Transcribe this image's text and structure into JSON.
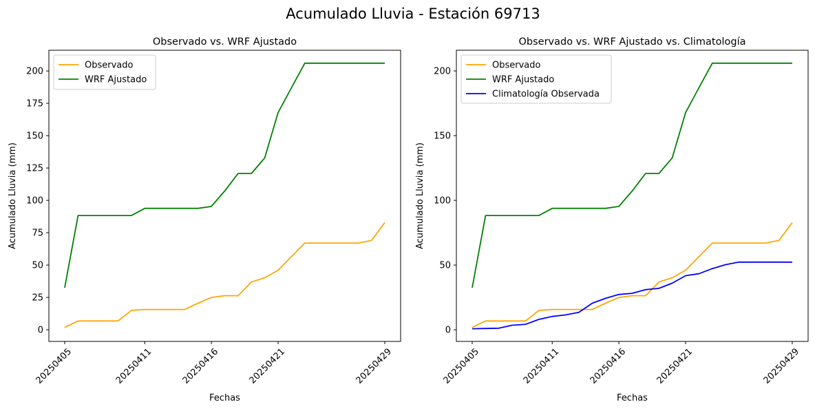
{
  "suptitle": "Acumulado Lluvia - Estación 69713",
  "colors": {
    "observed": "#ffa500",
    "wrf": "#008000",
    "clim": "#0000ff",
    "axis": "#000000"
  },
  "chart_data": [
    {
      "type": "line",
      "title": "Observado vs. WRF Ajustado",
      "xlabel": "Fechas",
      "ylabel": "Acumulado Lluvia (mm)",
      "x": [
        "20250405",
        "20250406",
        "20250407",
        "20250408",
        "20250409",
        "20250410",
        "20250411",
        "20250412",
        "20250413",
        "20250414",
        "20250415",
        "20250416",
        "20250417",
        "20250418",
        "20250419",
        "20250420",
        "20250421",
        "20250422",
        "20250423",
        "20250424",
        "20250425",
        "20250426",
        "20250427",
        "20250428",
        "20250429"
      ],
      "xticks": [
        "20250405",
        "20250411",
        "20250416",
        "20250421",
        "20250429"
      ],
      "yticks": [
        0,
        25,
        50,
        75,
        100,
        125,
        150,
        175,
        200
      ],
      "ylim": [
        -9,
        216
      ],
      "legend_position": "upper left",
      "grid": false,
      "series": [
        {
          "name": "Observado",
          "color": "#ffa500",
          "values": [
            1.8,
            6.8,
            6.8,
            6.8,
            6.8,
            15.0,
            15.7,
            15.7,
            15.7,
            15.7,
            20.5,
            25.0,
            26.3,
            26.3,
            36.9,
            40.2,
            46.0,
            56.5,
            67.0,
            67.0,
            67.0,
            67.0,
            67.0,
            69.0,
            82.8
          ]
        },
        {
          "name": "WRF Ajustado",
          "color": "#008000",
          "values": [
            32.5,
            88.3,
            88.3,
            88.3,
            88.3,
            88.3,
            93.8,
            93.8,
            93.8,
            93.8,
            93.8,
            95.3,
            107.3,
            120.8,
            120.8,
            132.8,
            167.8,
            187.0,
            206.0,
            206.0,
            206.0,
            206.0,
            206.0,
            206.0,
            206.0
          ]
        }
      ]
    },
    {
      "type": "line",
      "title": "Observado vs. WRF Ajustado vs. Climatología",
      "xlabel": "Fechas",
      "ylabel": "Acumulado Lluvia (mm)",
      "x": [
        "20250405",
        "20250406",
        "20250407",
        "20250408",
        "20250409",
        "20250410",
        "20250411",
        "20250412",
        "20250413",
        "20250414",
        "20250415",
        "20250416",
        "20250417",
        "20250418",
        "20250419",
        "20250420",
        "20250421",
        "20250422",
        "20250423",
        "20250424",
        "20250425",
        "20250426",
        "20250427",
        "20250428",
        "20250429"
      ],
      "xticks": [
        "20250405",
        "20250411",
        "20250416",
        "20250421",
        "20250429"
      ],
      "yticks": [
        0,
        50,
        100,
        150,
        200
      ],
      "ylim": [
        -9,
        216
      ],
      "legend_position": "upper left",
      "grid": false,
      "series": [
        {
          "name": "Observado",
          "color": "#ffa500",
          "values": [
            1.8,
            6.8,
            6.8,
            6.8,
            6.8,
            15.0,
            15.7,
            15.7,
            15.7,
            15.7,
            20.5,
            25.0,
            26.3,
            26.3,
            36.9,
            40.2,
            46.0,
            56.5,
            67.0,
            67.0,
            67.0,
            67.0,
            67.0,
            69.0,
            82.8
          ]
        },
        {
          "name": "WRF Ajustado",
          "color": "#008000",
          "values": [
            32.5,
            88.3,
            88.3,
            88.3,
            88.3,
            88.3,
            93.8,
            93.8,
            93.8,
            93.8,
            93.8,
            95.3,
            107.3,
            120.8,
            120.8,
            132.8,
            167.8,
            187.0,
            206.0,
            206.0,
            206.0,
            206.0,
            206.0,
            206.0,
            206.0
          ]
        },
        {
          "name": "Climatología Observada",
          "color": "#0000ff",
          "values": [
            0.8,
            1.0,
            1.2,
            3.5,
            4.2,
            8.0,
            10.3,
            11.5,
            13.5,
            20.5,
            24.3,
            27.3,
            28.2,
            31.0,
            32.0,
            36.0,
            41.8,
            43.3,
            47.3,
            50.3,
            52.3,
            52.3,
            52.3,
            52.3,
            52.3
          ]
        }
      ]
    }
  ]
}
